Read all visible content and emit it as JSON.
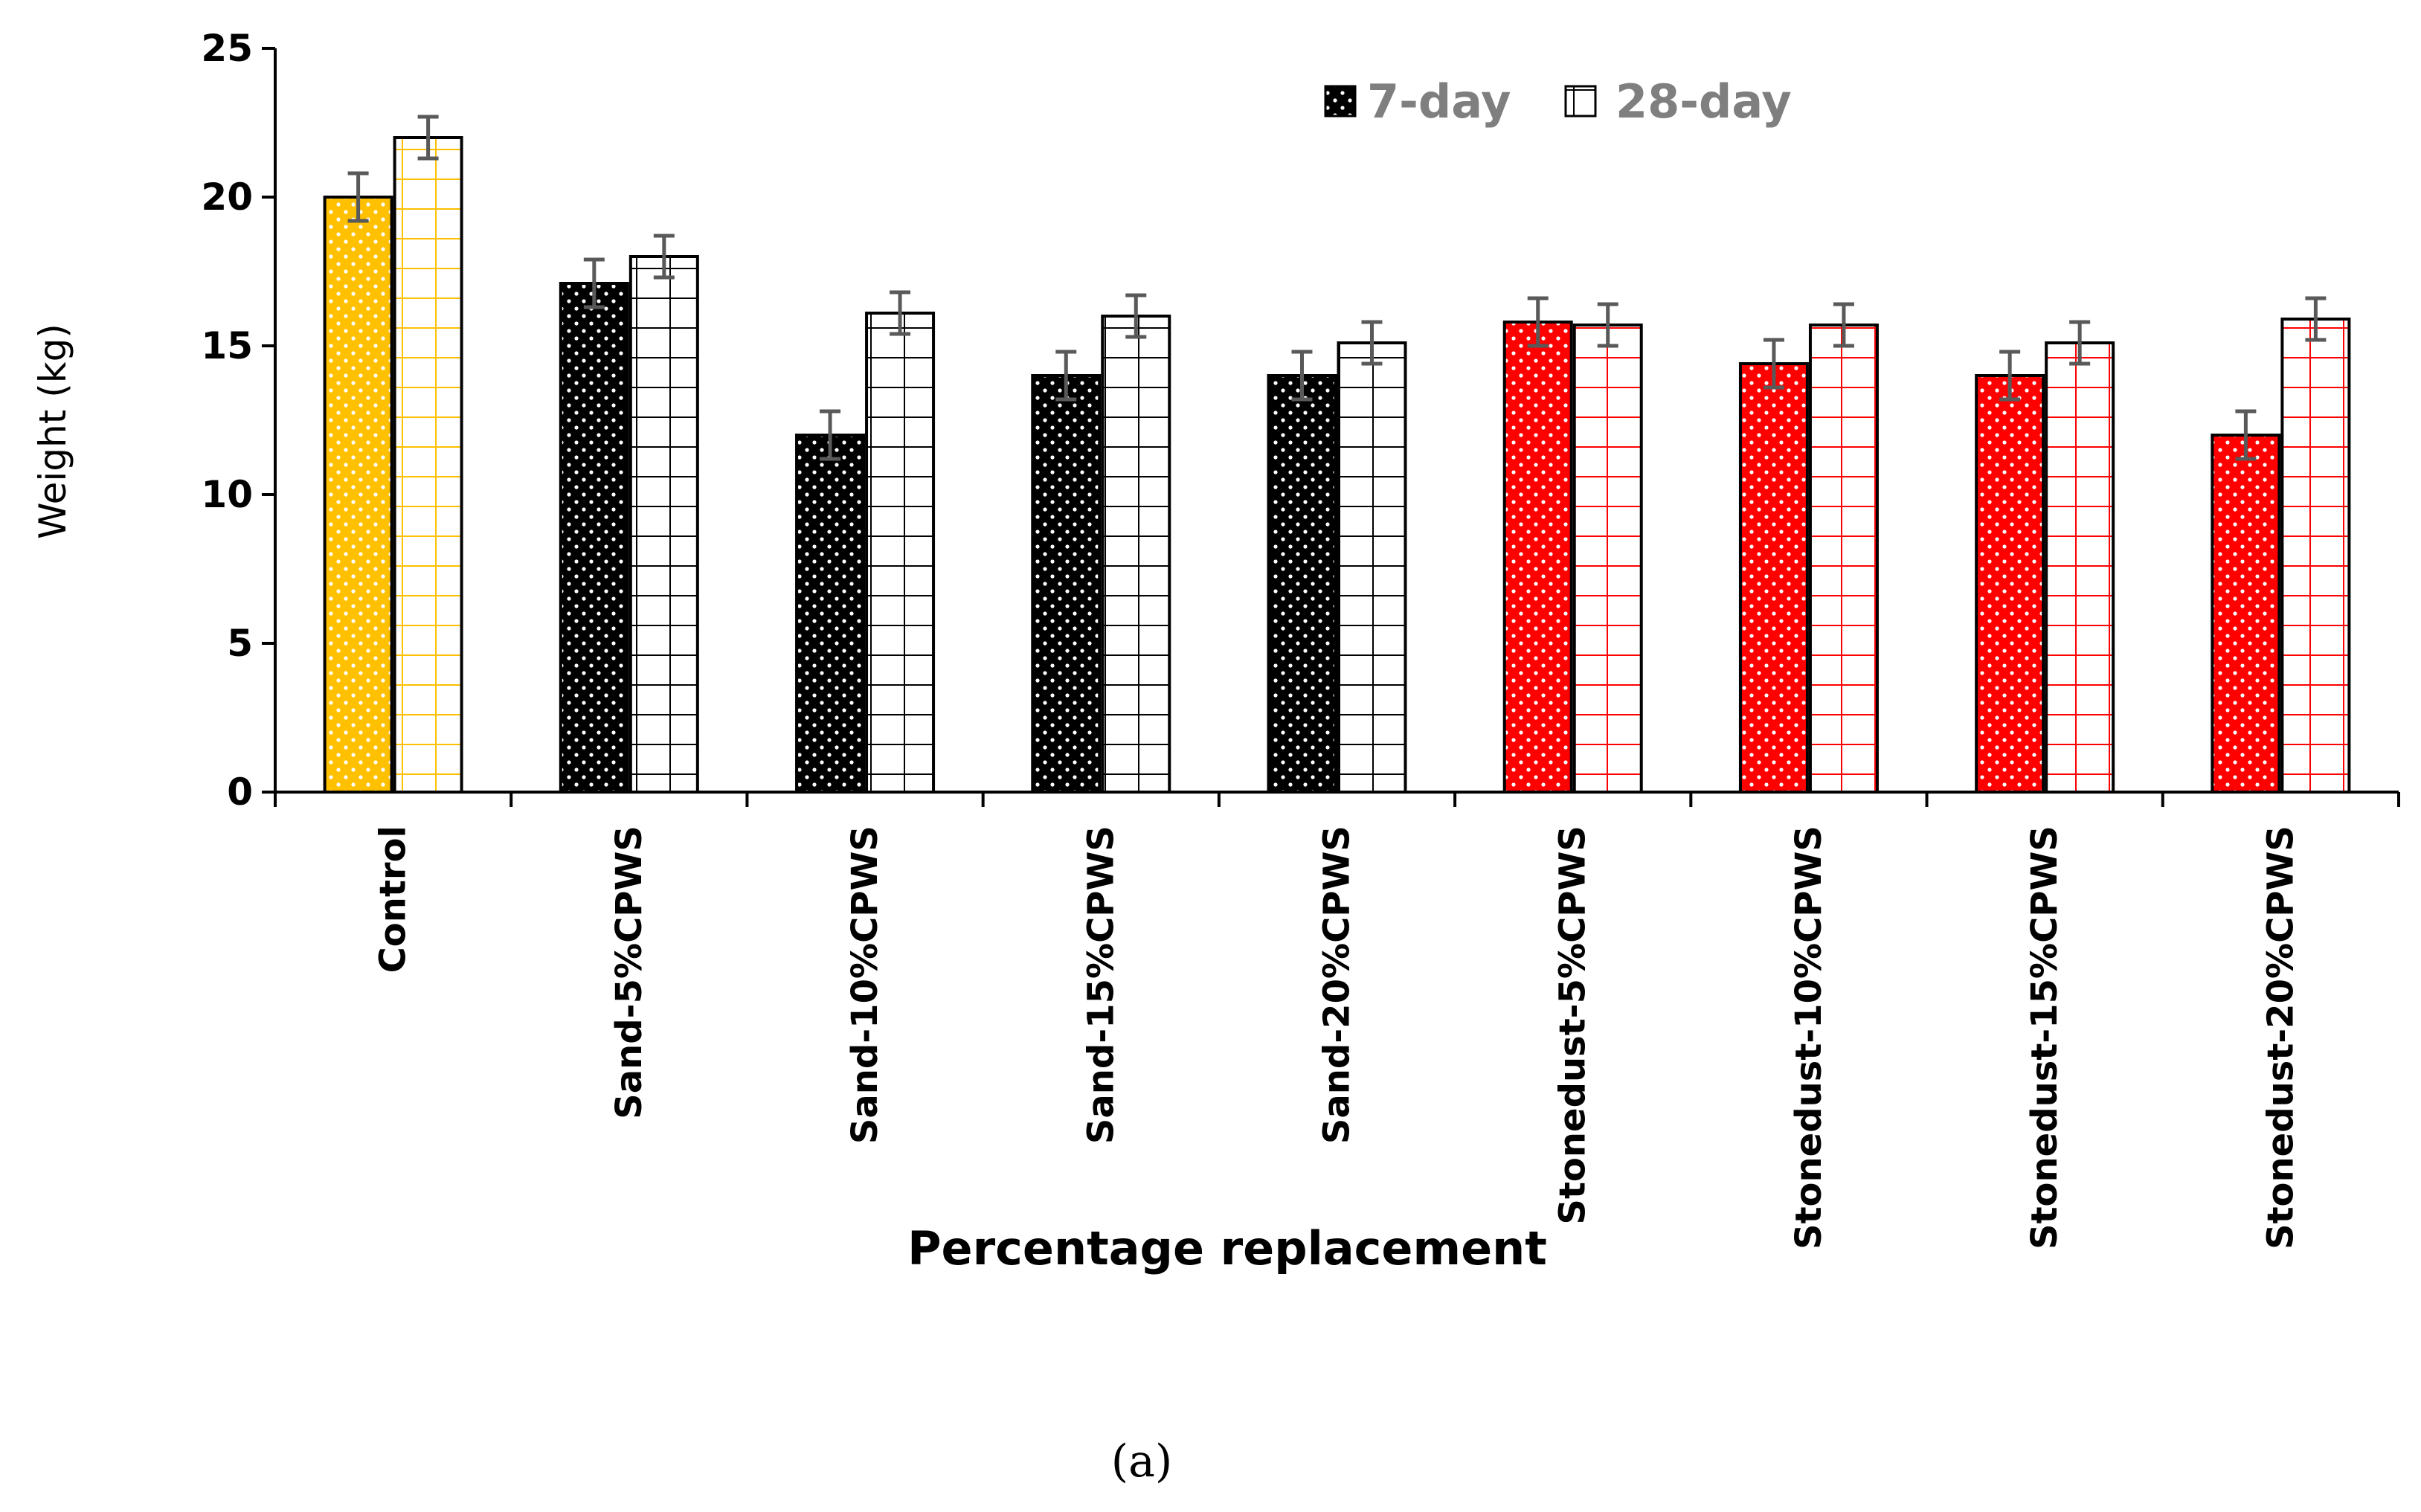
{
  "chart_data": {
    "type": "bar",
    "title": "",
    "xlabel": "Percentage replacement",
    "ylabel": "Weight (kg)",
    "ylim": [
      0,
      25
    ],
    "yticks": [
      0,
      5,
      10,
      15,
      20,
      25
    ],
    "categories": [
      "Control",
      "Sand-5%CPWS",
      "Sand-10%CPWS",
      "Sand-15%CPWS",
      "Sand-20%CPWS",
      "Stonedust-5%CPWS",
      "Stonedust-10%CPWS",
      "Stonedust-15%CPWS",
      "Stonedust-20%CPWS"
    ],
    "category_colors": [
      "#FFC000",
      "#000000",
      "#000000",
      "#000000",
      "#000000",
      "#FF0000",
      "#FF0000",
      "#FF0000",
      "#FF0000"
    ],
    "series": [
      {
        "name": "7-day",
        "pattern": "dots",
        "values": [
          20,
          17.1,
          12,
          14,
          14,
          15.8,
          14.4,
          14,
          12
        ],
        "errors": [
          0.8,
          0.8,
          0.8,
          0.8,
          0.8,
          0.8,
          0.8,
          0.8,
          0.8
        ]
      },
      {
        "name": "28-day",
        "pattern": "grid",
        "values": [
          22,
          18,
          16.1,
          16,
          15.1,
          15.7,
          15.7,
          15.1,
          15.9
        ],
        "errors": [
          0.7,
          0.7,
          0.7,
          0.7,
          0.7,
          0.7,
          0.7,
          0.7,
          0.7
        ]
      }
    ],
    "legend": {
      "position": "top-right",
      "entries": [
        "7-day",
        "28-day"
      ]
    },
    "grid": false,
    "error_bar_color": "#595959",
    "legend_text_color": "#7f7f7f"
  },
  "caption": "(a)"
}
